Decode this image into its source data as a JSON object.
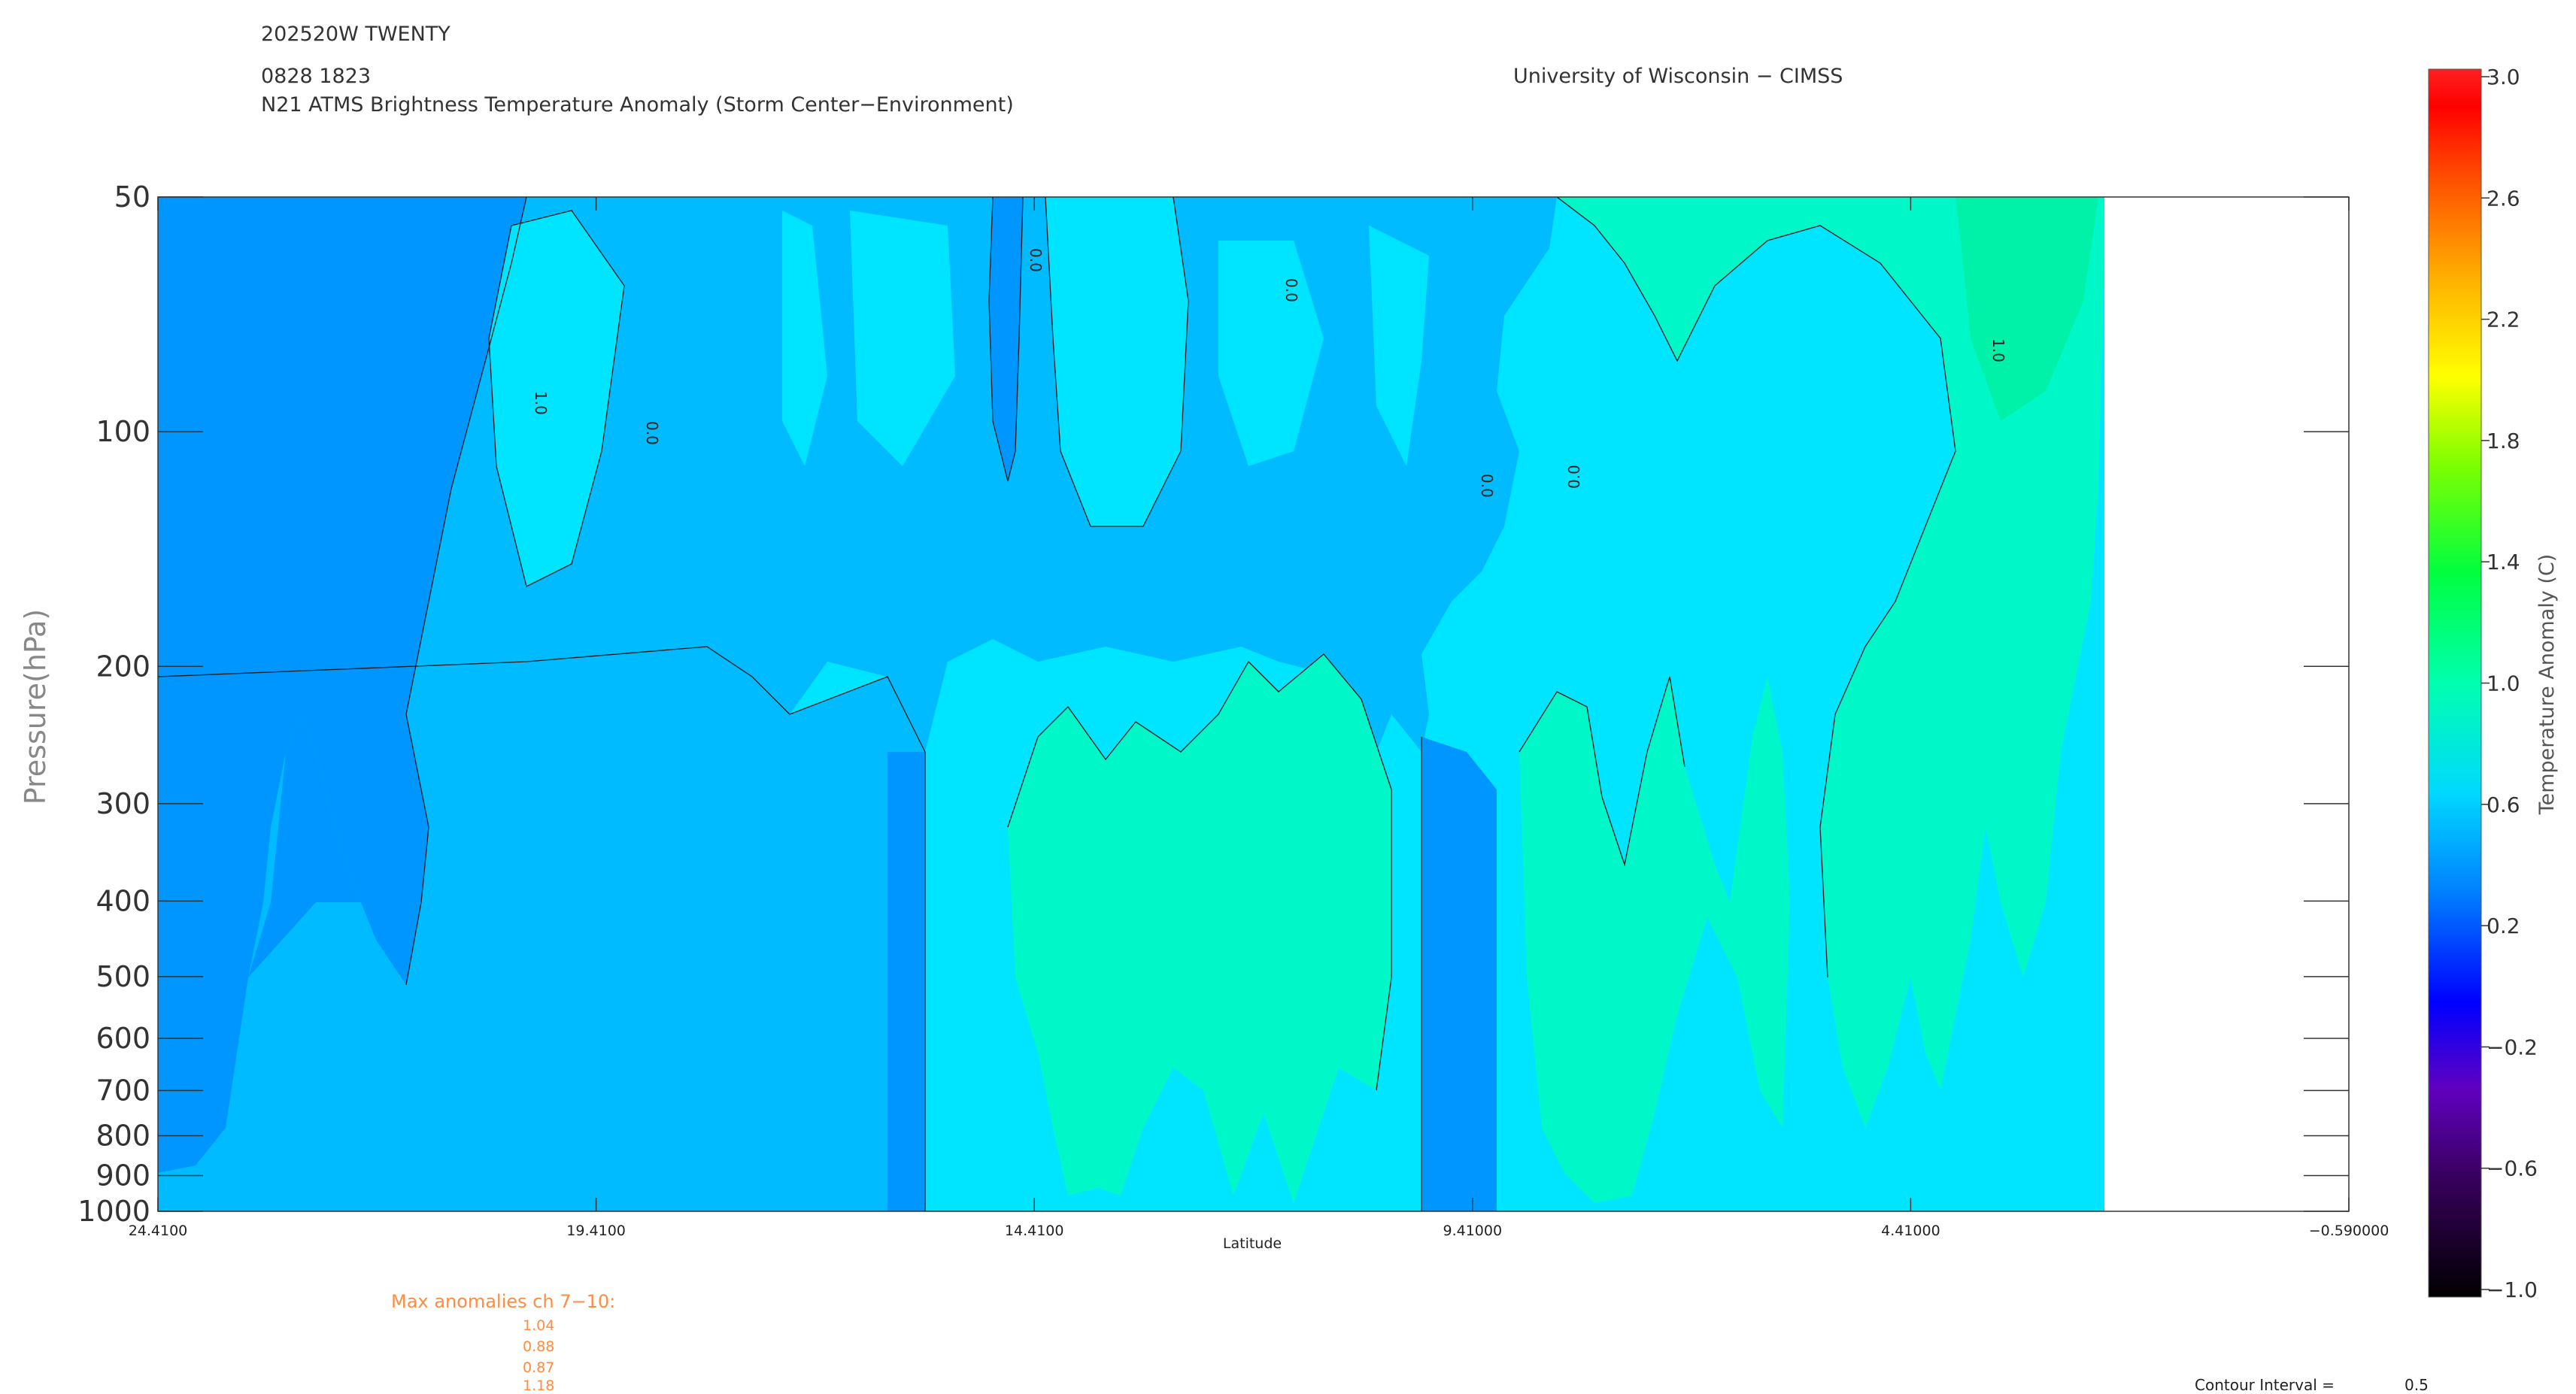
{
  "header": {
    "storm_id": "202520W TWENTY",
    "datetime": "0828 1823",
    "product": "N21 ATMS Brightness Temperature Anomaly (Storm Center−Environment)",
    "institution": "University of Wisconsin − CIMSS"
  },
  "chart_data": {
    "type": "heatmap",
    "title": "N21 ATMS Brightness Temperature Anomaly (Storm Center−Environment)",
    "xlabel": "Latitude",
    "ylabel": "Pressure(hPa)",
    "x_tick_labels": [
      "24.4100",
      "19.4100",
      "14.4100",
      "9.41000",
      "4.41000",
      "−0.590000"
    ],
    "x_ticks": [
      24.41,
      19.41,
      14.41,
      9.41,
      4.41,
      -0.59
    ],
    "xlim": [
      24.41,
      -0.59
    ],
    "y_scale": "log",
    "ylim": [
      1000,
      50
    ],
    "y_ticks": [
      50,
      100,
      200,
      300,
      400,
      500,
      600,
      700,
      800,
      900,
      1000
    ],
    "y_tick_labels": [
      "50",
      "100",
      "200",
      "300",
      "400",
      "500",
      "600",
      "700",
      "800",
      "900",
      "1000"
    ],
    "data_extent_lat": [
      24.41,
      3.2
    ],
    "colorbar": {
      "label": "Temperature Anomaly (C)",
      "min": -1.0,
      "max": 3.0,
      "tick_labels": [
        "3.0",
        "2.6",
        "2.2",
        "1.8",
        "1.4",
        "1.0",
        "0.6",
        "0.2",
        "−0.2",
        "−0.6",
        "−1.0"
      ]
    },
    "contour_interval": 0.5,
    "contour_line_labels": [
      "0.0",
      "1.0"
    ],
    "field_summary": [
      {
        "lat_range": [
          24.41,
          21.5
        ],
        "p_range": [
          50,
          1000
        ],
        "anomaly_approx": 0.35
      },
      {
        "lat_range": [
          21.5,
          12.7
        ],
        "p_range": [
          50,
          200
        ],
        "anomaly_approx": 0.4
      },
      {
        "lat_range": [
          21.5,
          12.7
        ],
        "p_range": [
          200,
          1000
        ],
        "anomaly_approx": 0.55
      },
      {
        "lat_range": [
          12.7,
          8.9
        ],
        "p_range": [
          220,
          1000
        ],
        "anomaly_approx": 0.8
      },
      {
        "lat_range": [
          8.9,
          3.2
        ],
        "p_range": [
          150,
          1000
        ],
        "anomaly_approx": 0.85
      },
      {
        "lat_range": [
          7.5,
          3.2
        ],
        "p_range": [
          50,
          150
        ],
        "anomaly_approx": 0.9
      }
    ]
  },
  "max_anomalies": {
    "title": "Max anomalies ch 7−10:",
    "values": [
      "1.04",
      "0.88",
      "0.87",
      "1.18"
    ]
  },
  "contour_interval": {
    "label": "Contour Interval =",
    "value": "0.5"
  },
  "colors": {
    "blue_dark": "#0096ff",
    "blue_mid": "#00bbff",
    "cyan": "#00e5ff",
    "teal": "#00f7c8",
    "green_teal": "#00f2a8",
    "text_orange": "#ff8c42"
  }
}
